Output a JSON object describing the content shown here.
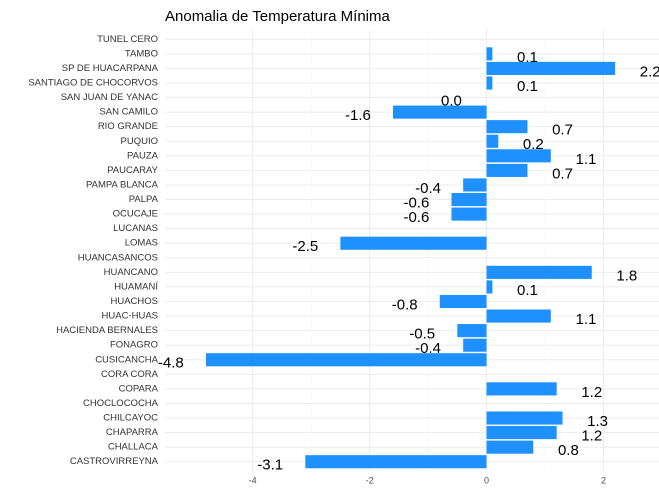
{
  "chart_data": {
    "type": "barh",
    "title": "Anomalia de Temperatura Mínima",
    "categories": [
      "TUNEL CERO",
      "TAMBO",
      "SP DE HUACARPANA",
      "SANTIAGO DE CHOCORVOS",
      "SAN JUAN DE YANAC",
      "SAN CAMILO",
      "RIO GRANDE",
      "PUQUIO",
      "PAUZA",
      "PAUCARAY",
      "PAMPA BLANCA",
      "PALPA",
      "OCUCAJE",
      "LUCANAS",
      "LOMAS",
      "HUANCASANCOS",
      "HUANCANO",
      "HUAMANÍ",
      "HUACHOS",
      "HUAC-HUAS",
      "HACIENDA BERNALES",
      "FONAGRO",
      "CUSICANCHA",
      "CORA CORA",
      "COPARA",
      "CHOCLOCOCHA",
      "CHILCAYOC",
      "CHAPARRA",
      "CHALLACA",
      "CASTROVIRREYNA"
    ],
    "values": [
      null,
      0.1,
      2.2,
      0.1,
      0,
      -1.6,
      0.7,
      0.2,
      1.1,
      0.7,
      -0.4,
      -0.6,
      -0.6,
      null,
      -2.5,
      null,
      1.8,
      0.1,
      -0.8,
      1.1,
      -0.5,
      -0.4,
      -4.8,
      null,
      1.2,
      null,
      1.3,
      1.2,
      0.8,
      -3.1
    ],
    "value_labels": [
      null,
      "0.1",
      "2.2",
      "0.1",
      "0.0",
      "-1.6",
      "0.7",
      "0.2",
      "1.1",
      "0.7",
      "-0.4",
      "-0.6",
      "-0.6",
      null,
      "-2.5",
      null,
      "1.8",
      "0.1",
      "-0.8",
      "1.1",
      "-0.5",
      "-0.4",
      "-4.8",
      null,
      "1.2",
      null,
      "1.3",
      "1.2",
      "0.8",
      "-3.1"
    ],
    "color": "#1e90ff",
    "xlim": [
      -5.5,
      2.95
    ],
    "xticks": [
      -4,
      -2,
      0,
      2
    ],
    "grid": true
  }
}
